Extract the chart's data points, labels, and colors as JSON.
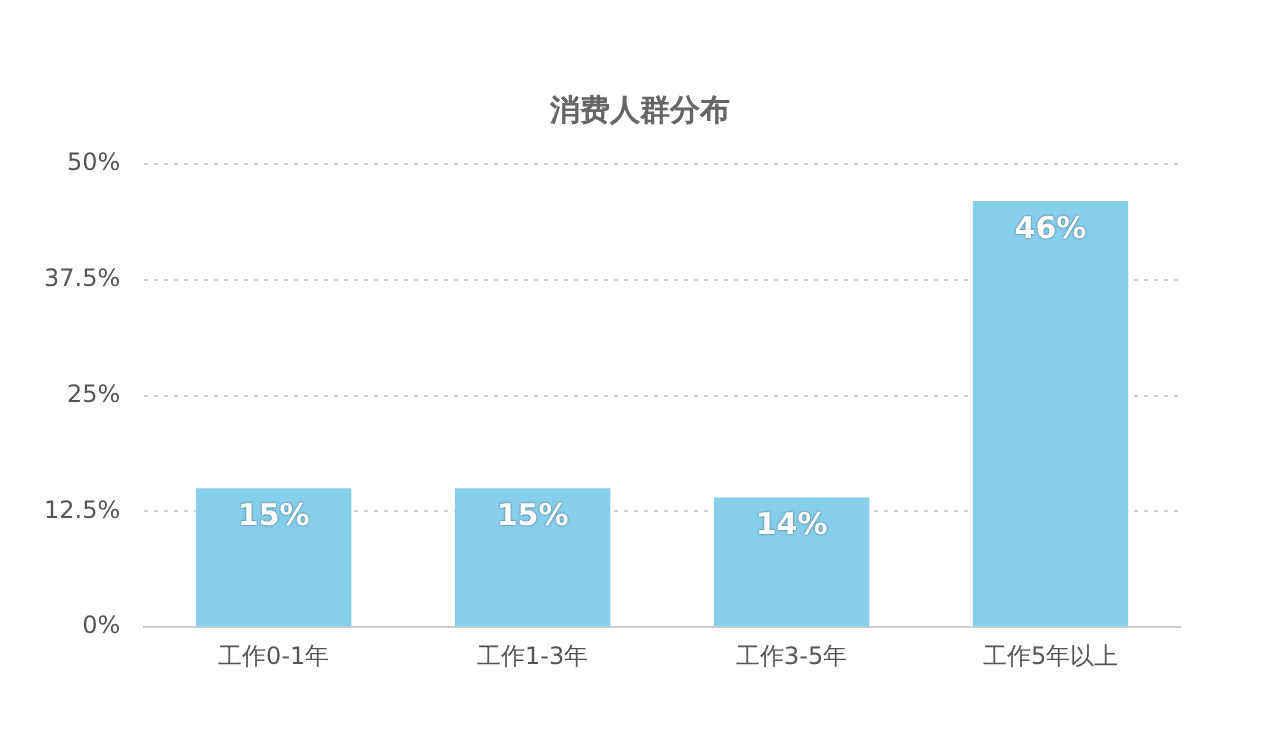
{
  "chart_data": {
    "type": "bar",
    "title": "消费人群分布",
    "categories": [
      "工作0-1年",
      "工作1-3年",
      "工作3-5年",
      "工作5年以上"
    ],
    "values": [
      15,
      15,
      14,
      46
    ],
    "value_labels": [
      "15%",
      "15%",
      "14%",
      "46%"
    ],
    "color": "#87ceeb",
    "ylim": [
      0,
      50
    ],
    "yticks": [
      {
        "value": 0,
        "label": "0%"
      },
      {
        "value": 12.5,
        "label": "12.5%"
      },
      {
        "value": 25,
        "label": "25%"
      },
      {
        "value": 37.5,
        "label": "37.5%"
      },
      {
        "value": 50,
        "label": "50%"
      }
    ],
    "grid": "y"
  }
}
